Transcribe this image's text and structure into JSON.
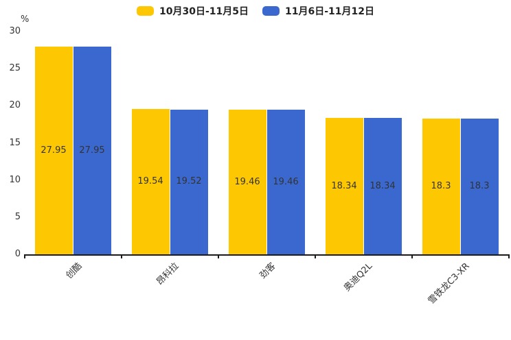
{
  "chart_data": {
    "type": "bar",
    "title": "",
    "categories": [
      "创酷",
      "昂科拉",
      "劲客",
      "奥迪Q2L",
      "雪铁龙C3-XR"
    ],
    "series": [
      {
        "name": "10月30日-11月5日",
        "color": "#FDC802",
        "values": [
          27.95,
          19.54,
          19.46,
          18.34,
          18.3
        ]
      },
      {
        "name": "11月6日-11月12日",
        "color": "#3A68CE",
        "values": [
          27.95,
          19.52,
          19.46,
          18.34,
          18.3
        ]
      }
    ],
    "value_labels": [
      "27.95",
      "19.54",
      "19.46",
      "18.34",
      "18.3",
      "27.95",
      "19.52",
      "19.46",
      "18.34",
      "18.3"
    ],
    "xlabel": "",
    "ylabel": "%",
    "ylim": [
      0,
      30
    ],
    "yticks": [
      0,
      5,
      10,
      15,
      20,
      25,
      30
    ],
    "grid": false,
    "legend_position": "top",
    "value_label_color": "#333333",
    "axis_color": "#1a1a1a"
  }
}
